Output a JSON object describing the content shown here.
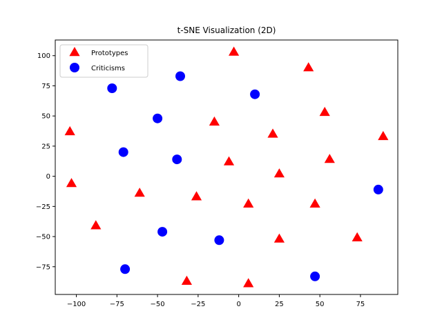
{
  "chart_data": {
    "type": "scatter",
    "title": "t-SNE Visualization (2D)",
    "xlabel": "",
    "ylabel": "",
    "xlim": [
      -113,
      98
    ],
    "ylim": [
      -98,
      113
    ],
    "xticks": [
      -100,
      -75,
      -50,
      -25,
      0,
      25,
      50,
      75
    ],
    "yticks": [
      -75,
      -50,
      -25,
      0,
      25,
      50,
      75,
      100
    ],
    "xtick_labels": [
      "−100",
      "−75",
      "−50",
      "−25",
      "0",
      "25",
      "50",
      "75"
    ],
    "ytick_labels": [
      "−75",
      "−50",
      "−25",
      "0",
      "25",
      "50",
      "75",
      "100"
    ],
    "grid": false,
    "legend_position": "top-left",
    "series": [
      {
        "name": "Prototypes",
        "marker": "triangle",
        "color": "#ff0000",
        "points": [
          [
            -3,
            103
          ],
          [
            43,
            90
          ],
          [
            53,
            53
          ],
          [
            -104,
            37
          ],
          [
            -15,
            45
          ],
          [
            21,
            35
          ],
          [
            89,
            33
          ],
          [
            56,
            14
          ],
          [
            -6,
            12
          ],
          [
            25,
            2
          ],
          [
            -103,
            -6
          ],
          [
            -61,
            -14
          ],
          [
            -26,
            -17
          ],
          [
            6,
            -23
          ],
          [
            47,
            -23
          ],
          [
            -88,
            -41
          ],
          [
            25,
            -52
          ],
          [
            73,
            -51
          ],
          [
            -32,
            -87
          ],
          [
            6,
            -89
          ]
        ]
      },
      {
        "name": "Criticisms",
        "marker": "circle",
        "color": "#0000ff",
        "points": [
          [
            -36,
            83
          ],
          [
            -78,
            73
          ],
          [
            10,
            68
          ],
          [
            -50,
            48
          ],
          [
            -71,
            20
          ],
          [
            -38,
            14
          ],
          [
            86,
            -11
          ],
          [
            -47,
            -46
          ],
          [
            -12,
            -53
          ],
          [
            -70,
            -77
          ],
          [
            47,
            -83
          ]
        ]
      }
    ]
  }
}
